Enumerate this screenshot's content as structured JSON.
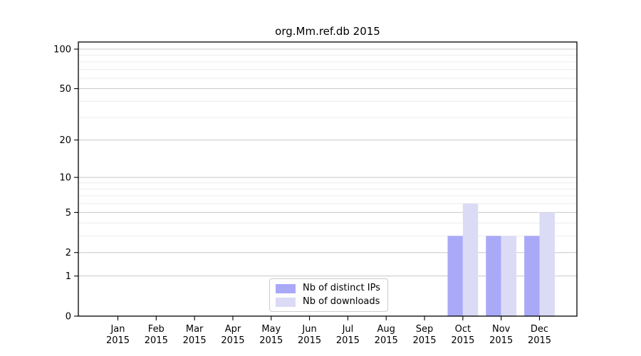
{
  "title": "org.Mm.ref.db 2015",
  "chart_data": {
    "type": "bar",
    "title": "org.Mm.ref.db 2015",
    "x_categories": [
      "Jan",
      "Feb",
      "Mar",
      "Apr",
      "May",
      "Jun",
      "Jul",
      "Aug",
      "Sep",
      "Oct",
      "Nov",
      "Dec"
    ],
    "x_year": "2015",
    "series": [
      {
        "name": "Nb of distinct IPs",
        "color": "#a9a9f8",
        "values": [
          0,
          0,
          0,
          0,
          0,
          0,
          0,
          0,
          0,
          3,
          3,
          3
        ]
      },
      {
        "name": "Nb of downloads",
        "color": "#dbdbf6",
        "values": [
          0,
          0,
          0,
          0,
          0,
          0,
          0,
          0,
          0,
          6,
          3,
          5
        ]
      }
    ],
    "y_scale": "log1p",
    "y_ticks": [
      0,
      1,
      2,
      5,
      10,
      20,
      50,
      100
    ],
    "y_tick_labels": [
      "0",
      "1",
      "2",
      "5",
      "10",
      "20",
      "50",
      "100"
    ],
    "y_minor_gridlines": [
      3,
      4,
      6,
      7,
      8,
      9,
      30,
      40,
      60,
      70,
      80,
      90
    ],
    "ylim": [
      0,
      113
    ],
    "grid": true,
    "legend_position": "lower center"
  },
  "colors": {
    "background": "#ffffff",
    "axis": "#000000",
    "text": "#000000",
    "grid_major": "#c8c8c8",
    "grid_minor": "#ececec",
    "legend_border": "#cccccc"
  }
}
